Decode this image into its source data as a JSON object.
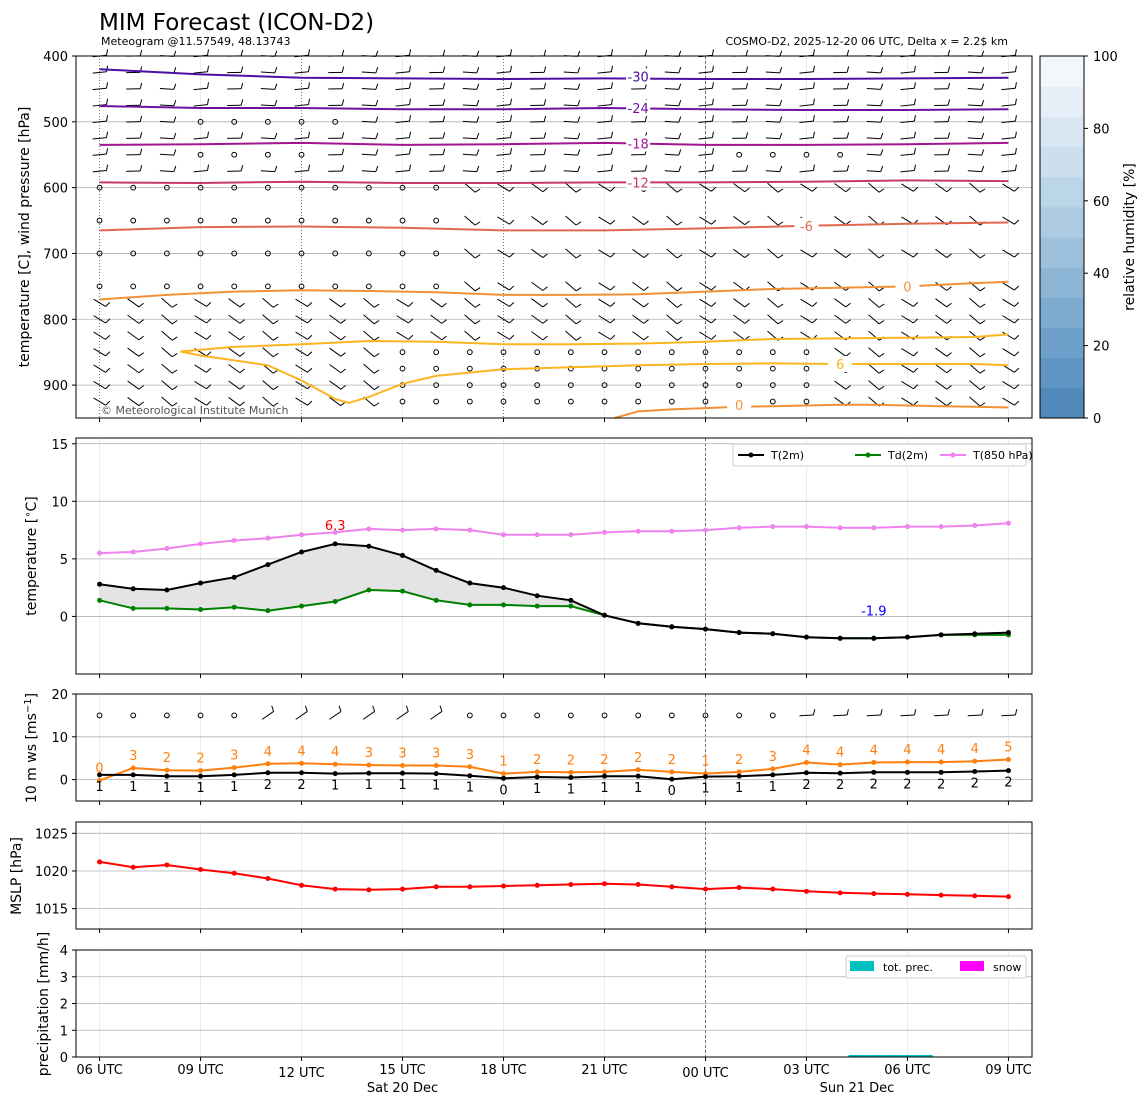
{
  "header": {
    "title": "MIM Forecast (ICON-D2)",
    "subtitle_left": "Meteogram @11.57549, 48.13743",
    "subtitle_right": "COSMO-D2, 2025-12-20 06 UTC, Delta x = 2.2$ km",
    "copyright": "© Meteorological Institute Munich"
  },
  "time_axis": {
    "tick_labels": [
      "06 UTC",
      "09 UTC",
      "12 UTC",
      "15 UTC",
      "18 UTC",
      "21 UTC",
      "00 UTC",
      "03 UTC",
      "06 UTC",
      "09 UTC"
    ],
    "tick_hours": [
      0,
      3,
      6,
      9,
      12,
      15,
      18,
      21,
      24,
      27
    ],
    "day_labels": [
      {
        "text": "Sat 20 Dec",
        "hour": 9
      },
      {
        "text": "Sun 21 Dec",
        "hour": 22.5
      }
    ],
    "midnight_hour": 18,
    "range": [
      -0.7,
      27.7
    ]
  },
  "chart_data": [
    {
      "type": "contour",
      "panel": "upper-air",
      "ylabel": "temperature [C], wind pressure [hPa]",
      "ylim": [
        950,
        400
      ],
      "yticks": [
        400,
        500,
        600,
        700,
        800,
        900
      ],
      "colorbar": {
        "label": "relative humidity [%]",
        "range": [
          0,
          100
        ],
        "ticks": [
          0,
          20,
          40,
          60,
          80,
          100
        ],
        "colors": [
          "#5189bb",
          "#5f95c3",
          "#6e9fca",
          "#7eabd0",
          "#8db5d6",
          "#9dc1dc",
          "#adcce3",
          "#bcd6e9",
          "#cbdfee",
          "#d9e7f4",
          "#e6eff8",
          "#f2f7fc"
        ]
      },
      "isotherm_colors": {
        "-30": "#4b0fa3",
        "-24": "#7010a3",
        "-18": "#a3158f",
        "-12": "#c7376a",
        "-6": "#e06851",
        "0": "#f38f36",
        "6": "#fbb51f"
      },
      "isotherm_labels": [
        {
          "text": "-30",
          "hour": 16,
          "p": 431
        },
        {
          "text": "-24",
          "hour": 16,
          "p": 479
        },
        {
          "text": "-18",
          "hour": 16,
          "p": 533
        },
        {
          "text": "-12",
          "hour": 16,
          "p": 592
        },
        {
          "text": "-6",
          "hour": 21,
          "p": 658
        },
        {
          "text": "0",
          "hour": 24,
          "p": 750
        },
        {
          "text": "6",
          "hour": 22,
          "p": 868
        },
        {
          "text": "0",
          "hour": 19,
          "p": 930
        }
      ],
      "isotherms": [
        {
          "level": -30,
          "hours": [
            0,
            3,
            6,
            9,
            12,
            15,
            18,
            21,
            24,
            27
          ],
          "p": [
            420,
            428,
            433,
            434,
            435,
            434,
            435,
            435,
            434,
            433
          ]
        },
        {
          "level": -24,
          "hours": [
            0,
            3,
            6,
            9,
            12,
            15,
            18,
            21,
            24,
            27
          ],
          "p": [
            476,
            479,
            479,
            481,
            481,
            479,
            481,
            482,
            482,
            481
          ]
        },
        {
          "level": -18,
          "hours": [
            0,
            3,
            6,
            9,
            12,
            15,
            18,
            21,
            24,
            27
          ],
          "p": [
            535,
            534,
            532,
            535,
            534,
            532,
            535,
            535,
            534,
            532
          ]
        },
        {
          "level": -12,
          "hours": [
            0,
            3,
            6,
            9,
            12,
            15,
            18,
            21,
            24,
            27
          ],
          "p": [
            592,
            593,
            591,
            593,
            593,
            592,
            592,
            591,
            589,
            590
          ]
        },
        {
          "level": -6,
          "hours": [
            0,
            3,
            6,
            9,
            12,
            15,
            18,
            21,
            24,
            27
          ],
          "p": [
            665,
            660,
            659,
            661,
            665,
            665,
            662,
            658,
            655,
            653
          ]
        },
        {
          "level": 0,
          "hours": [
            0,
            2,
            4,
            6,
            8,
            10,
            12,
            14,
            16,
            18,
            20,
            22,
            24,
            26,
            27
          ],
          "p": [
            770,
            763,
            758,
            756,
            757,
            759,
            763,
            763,
            762,
            758,
            754,
            752,
            750,
            745,
            743
          ]
        },
        {
          "level": 6,
          "hours": [
            2.4,
            4,
            6,
            8,
            10,
            12,
            14,
            16,
            18,
            20,
            22,
            24,
            26,
            27
          ],
          "p": [
            849,
            842,
            838,
            833,
            834,
            838,
            838,
            837,
            834,
            830,
            829,
            828,
            827,
            823
          ]
        },
        {
          "level": 6,
          "hours": [
            2.4,
            3,
            5,
            6,
            7,
            7.4,
            8,
            9,
            10,
            12,
            14,
            16,
            18,
            20,
            22,
            24,
            26,
            27
          ],
          "p": [
            849,
            855,
            870,
            893,
            921,
            927,
            918,
            898,
            886,
            876,
            873,
            870,
            868,
            867,
            868,
            868,
            868,
            870
          ]
        },
        {
          "level": 0,
          "hours": [
            15.3,
            16,
            17,
            18,
            19,
            20,
            21,
            22,
            23,
            24,
            25,
            26,
            27
          ],
          "p": [
            950,
            940,
            937,
            935,
            933,
            932,
            931,
            930,
            930,
            931,
            932,
            933,
            934
          ]
        }
      ],
      "wind_note": "wind barbs per pressure level: circles = calm, barbs = ~5-20 kt, mostly from W/NW"
    },
    {
      "type": "line",
      "panel": "surface-temperature",
      "ylabel": "temperature [$^\\circ$C]",
      "ylim": [
        -5,
        15.5
      ],
      "yticks": [
        0,
        5,
        10,
        15
      ],
      "x": [
        0,
        1,
        2,
        3,
        4,
        5,
        6,
        7,
        8,
        9,
        10,
        11,
        12,
        13,
        14,
        15,
        16,
        17,
        18,
        19,
        20,
        21,
        22,
        23,
        24,
        25,
        26,
        27
      ],
      "series": [
        {
          "name": "T(2m)",
          "color": "#000000",
          "values": [
            2.8,
            2.4,
            2.3,
            2.9,
            3.4,
            4.5,
            5.6,
            6.3,
            6.1,
            5.3,
            4.0,
            2.9,
            2.5,
            1.8,
            1.4,
            0.1,
            -0.6,
            -0.9,
            -1.1,
            -1.4,
            -1.5,
            -1.8,
            -1.9,
            -1.9,
            -1.8,
            -1.6,
            -1.5,
            -1.4
          ]
        },
        {
          "name": "Td(2m)",
          "color": "#008000",
          "values": [
            1.4,
            0.7,
            0.7,
            0.6,
            0.8,
            0.5,
            0.9,
            1.3,
            2.3,
            2.2,
            1.4,
            1.0,
            1.0,
            0.9,
            0.9,
            0.1,
            -0.6,
            -0.9,
            -1.1,
            -1.4,
            -1.5,
            -1.8,
            -1.9,
            -1.9,
            -1.8,
            -1.6,
            -1.6,
            -1.6
          ]
        },
        {
          "name": "T(850 hPa)",
          "color": "#ee82ee",
          "values": [
            5.5,
            5.6,
            5.9,
            6.3,
            6.6,
            6.8,
            7.1,
            7.3,
            7.6,
            7.5,
            7.6,
            7.5,
            7.1,
            7.1,
            7.1,
            7.3,
            7.4,
            7.4,
            7.5,
            7.7,
            7.8,
            7.8,
            7.7,
            7.7,
            7.8,
            7.8,
            7.9,
            8.1
          ]
        }
      ],
      "annotations": [
        {
          "text": "6.3",
          "x": 7,
          "y": 7.5,
          "color": "#ff0000"
        },
        {
          "text": "-1.9",
          "x": 23,
          "y": 0.1,
          "color": "#0000ff"
        }
      ]
    },
    {
      "type": "line",
      "panel": "wind",
      "ylabel": "10 m ws [ms$^{-1}$]",
      "ylim": [
        -5,
        20
      ],
      "yticks": [
        0,
        10,
        20
      ],
      "x": [
        0,
        1,
        2,
        3,
        4,
        5,
        6,
        7,
        8,
        9,
        10,
        11,
        12,
        13,
        14,
        15,
        16,
        17,
        18,
        19,
        20,
        21,
        22,
        23,
        24,
        25,
        26,
        27
      ],
      "series": [
        {
          "color": "#ff7f0e",
          "values": [
            -0.2,
            2.7,
            2.2,
            2.1,
            2.8,
            3.7,
            3.8,
            3.6,
            3.4,
            3.3,
            3.3,
            3.0,
            1.4,
            1.8,
            1.7,
            1.8,
            2.3,
            1.8,
            1.4,
            1.8,
            2.5,
            4.0,
            3.5,
            4.0,
            4.1,
            4.1,
            4.3,
            4.7
          ]
        },
        {
          "color": "#000000",
          "values": [
            1.1,
            1.1,
            0.8,
            0.8,
            1.1,
            1.6,
            1.6,
            1.4,
            1.5,
            1.5,
            1.4,
            0.9,
            0.3,
            0.6,
            0.5,
            0.8,
            0.8,
            0.1,
            0.7,
            0.8,
            1.1,
            1.6,
            1.5,
            1.7,
            1.7,
            1.7,
            1.9,
            2.1
          ]
        }
      ],
      "gust_labels": [
        "0",
        "3",
        "2",
        "2",
        "3",
        "4",
        "4",
        "4",
        "3",
        "3",
        "3",
        "3",
        "1",
        "2",
        "2",
        "2",
        "2",
        "2",
        "1",
        "2",
        "3",
        "4",
        "4",
        "4",
        "4",
        "4",
        "4",
        "5"
      ],
      "speed_labels": [
        "1",
        "1",
        "1",
        "1",
        "1",
        "2",
        "2",
        "1",
        "1",
        "1",
        "1",
        "1",
        "0",
        "1",
        "1",
        "1",
        "1",
        "0",
        "1",
        "1",
        "1",
        "2",
        "2",
        "2",
        "2",
        "2",
        "2",
        "2"
      ]
    },
    {
      "type": "line",
      "panel": "pressure",
      "ylabel": "MSLP [hPa]",
      "ylim": [
        1012.3,
        1026.5
      ],
      "yticks": [
        1015,
        1020,
        1025
      ],
      "x": [
        0,
        1,
        2,
        3,
        4,
        5,
        6,
        7,
        8,
        9,
        10,
        11,
        12,
        13,
        14,
        15,
        16,
        17,
        18,
        19,
        20,
        21,
        22,
        23,
        24,
        25,
        26,
        27
      ],
      "series": [
        {
          "color": "#ff0000",
          "values": [
            1021.2,
            1020.5,
            1020.8,
            1020.2,
            1019.7,
            1019.0,
            1018.1,
            1017.6,
            1017.5,
            1017.6,
            1017.9,
            1017.9,
            1018.0,
            1018.1,
            1018.2,
            1018.3,
            1018.2,
            1017.9,
            1017.6,
            1017.8,
            1017.6,
            1017.3,
            1017.1,
            1017.0,
            1016.9,
            1016.8,
            1016.7,
            1016.6
          ]
        }
      ]
    },
    {
      "type": "bar",
      "panel": "precipitation",
      "ylabel": "precipitation [mm/h]",
      "ylim": [
        0,
        4
      ],
      "yticks": [
        0,
        1,
        2,
        3,
        4
      ],
      "series": [
        {
          "name": "tot. prec.",
          "color": "#00bfbf",
          "x": [
            22.5,
            23,
            23.5,
            24,
            24.5
          ],
          "values": [
            0.02,
            0.02,
            0.02,
            0.02,
            0.02
          ]
        },
        {
          "name": "snow",
          "color": "#ff00ff",
          "x": [],
          "values": []
        }
      ]
    }
  ]
}
